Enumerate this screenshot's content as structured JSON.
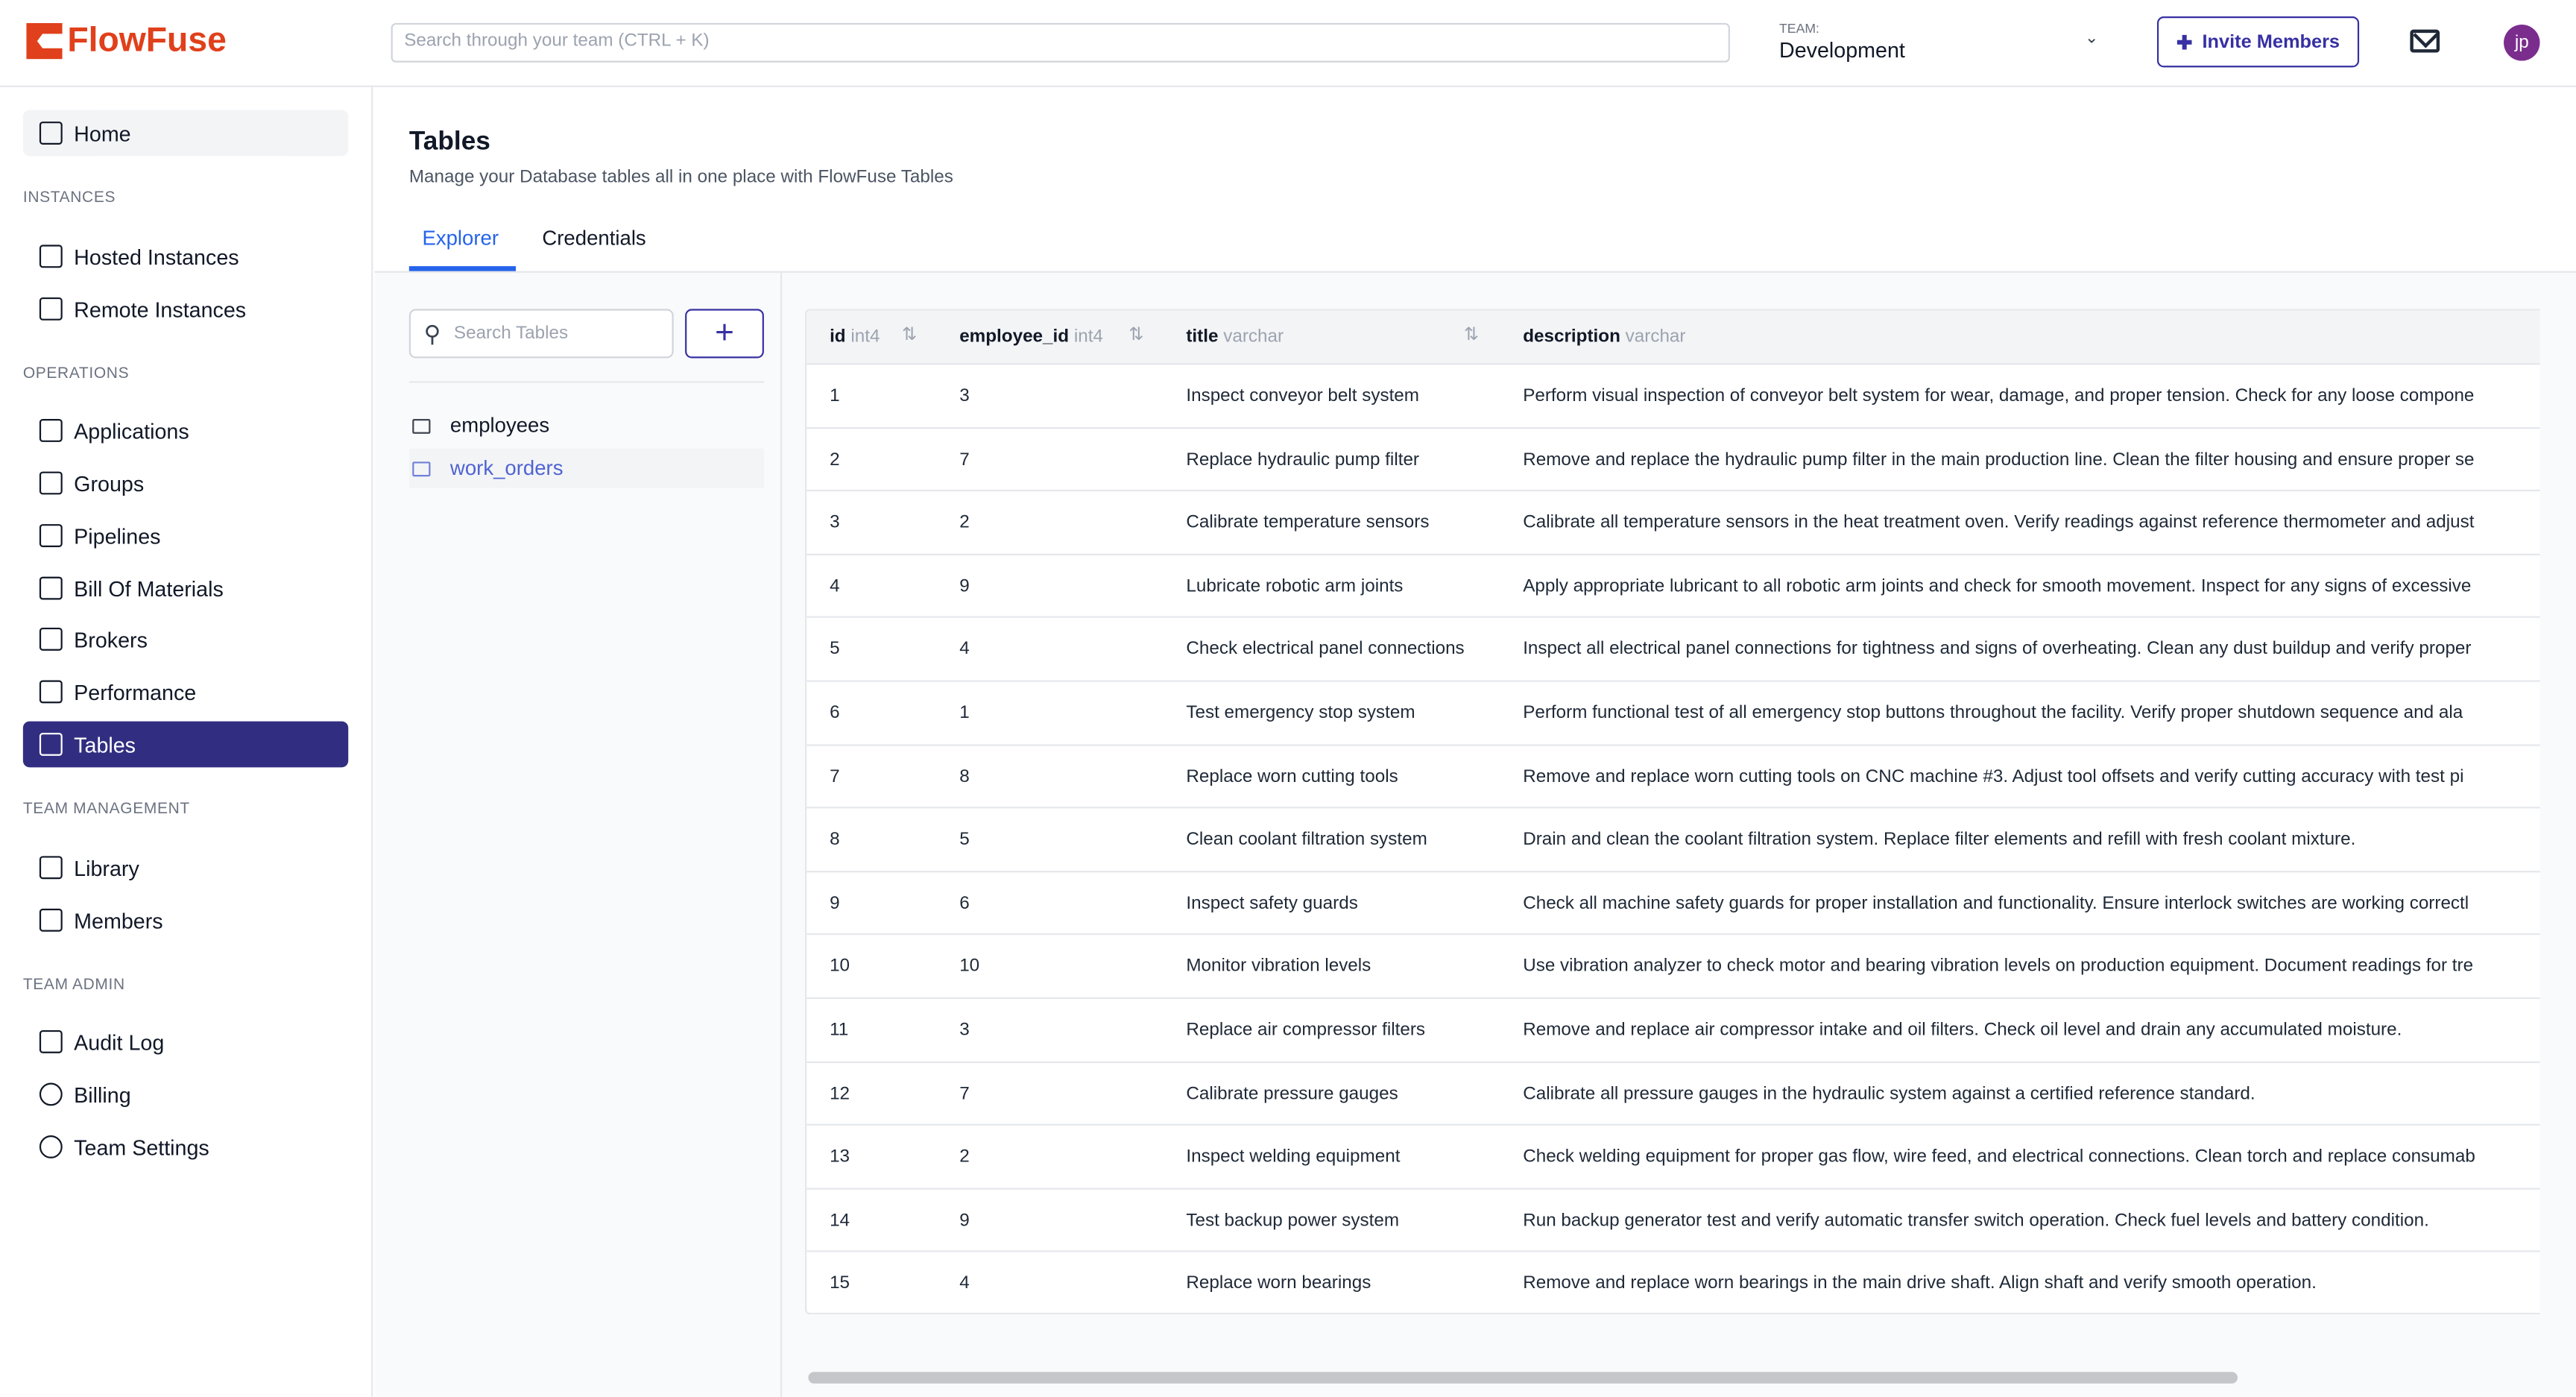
{
  "header": {
    "brand": "FlowFuse",
    "search_placeholder": "Search through your team (CTRL + K)",
    "team_label": "TEAM:",
    "team_value": "Development",
    "invite_label": "Invite Members",
    "avatar_initials": "jp"
  },
  "sidebar": {
    "home": "Home",
    "sections": [
      {
        "title": "INSTANCES",
        "items": [
          "Hosted Instances",
          "Remote Instances"
        ]
      },
      {
        "title": "OPERATIONS",
        "items": [
          "Applications",
          "Groups",
          "Pipelines",
          "Bill Of Materials",
          "Brokers",
          "Performance",
          "Tables"
        ]
      },
      {
        "title": "TEAM MANAGEMENT",
        "items": [
          "Library",
          "Members"
        ]
      },
      {
        "title": "TEAM ADMIN",
        "items": [
          "Audit Log",
          "Billing",
          "Team Settings"
        ]
      }
    ],
    "active": "Tables"
  },
  "main": {
    "title": "Tables",
    "subtitle": "Manage your Database tables all in one place with FlowFuse Tables",
    "tabs": [
      "Explorer",
      "Credentials"
    ],
    "active_tab": "Explorer",
    "table_search_placeholder": "Search Tables",
    "add_label": "+",
    "tables": [
      "employees",
      "work_orders"
    ],
    "selected_table": "work_orders"
  },
  "grid": {
    "columns": [
      {
        "name": "id",
        "type": "int4"
      },
      {
        "name": "employee_id",
        "type": "int4"
      },
      {
        "name": "title",
        "type": "varchar"
      },
      {
        "name": "description",
        "type": "varchar"
      }
    ],
    "rows": [
      [
        "1",
        "3",
        "Inspect conveyor belt system",
        "Perform visual inspection of conveyor belt system for wear, damage, and proper tension. Check for any loose compone"
      ],
      [
        "2",
        "7",
        "Replace hydraulic pump filter",
        "Remove and replace the hydraulic pump filter in the main production line. Clean the filter housing and ensure proper se"
      ],
      [
        "3",
        "2",
        "Calibrate temperature sensors",
        "Calibrate all temperature sensors in the heat treatment oven. Verify readings against reference thermometer and adjust"
      ],
      [
        "4",
        "9",
        "Lubricate robotic arm joints",
        "Apply appropriate lubricant to all robotic arm joints and check for smooth movement. Inspect for any signs of excessive"
      ],
      [
        "5",
        "4",
        "Check electrical panel connections",
        "Inspect all electrical panel connections for tightness and signs of overheating. Clean any dust buildup and verify proper"
      ],
      [
        "6",
        "1",
        "Test emergency stop system",
        "Perform functional test of all emergency stop buttons throughout the facility. Verify proper shutdown sequence and ala"
      ],
      [
        "7",
        "8",
        "Replace worn cutting tools",
        "Remove and replace worn cutting tools on CNC machine #3. Adjust tool offsets and verify cutting accuracy with test pi"
      ],
      [
        "8",
        "5",
        "Clean coolant filtration system",
        "Drain and clean the coolant filtration system. Replace filter elements and refill with fresh coolant mixture."
      ],
      [
        "9",
        "6",
        "Inspect safety guards",
        "Check all machine safety guards for proper installation and functionality. Ensure interlock switches are working correctl"
      ],
      [
        "10",
        "10",
        "Monitor vibration levels",
        "Use vibration analyzer to check motor and bearing vibration levels on production equipment. Document readings for tre"
      ],
      [
        "11",
        "3",
        "Replace air compressor filters",
        "Remove and replace air compressor intake and oil filters. Check oil level and drain any accumulated moisture."
      ],
      [
        "12",
        "7",
        "Calibrate pressure gauges",
        "Calibrate all pressure gauges in the hydraulic system against a certified reference standard."
      ],
      [
        "13",
        "2",
        "Inspect welding equipment",
        "Check welding equipment for proper gas flow, wire feed, and electrical connections. Clean torch and replace consumab"
      ],
      [
        "14",
        "9",
        "Test backup power system",
        "Run backup generator test and verify automatic transfer switch operation. Check fuel levels and battery condition."
      ],
      [
        "15",
        "4",
        "Replace worn bearings",
        "Remove and replace worn bearings in the main drive shaft. Align shaft and verify smooth operation."
      ]
    ]
  },
  "colors": {
    "brand": "#e0401b",
    "accent": "#312e81",
    "link": "#2563eb"
  }
}
